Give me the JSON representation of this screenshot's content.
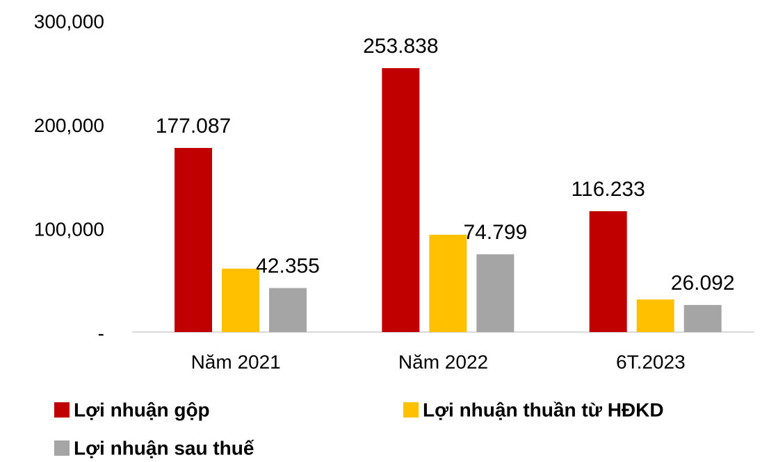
{
  "chart_data": {
    "type": "bar",
    "categories": [
      "Năm 2021",
      "Năm 2022",
      "6T.2023"
    ],
    "series": [
      {
        "name": "Lợi nhuận gộp",
        "color": "#c00000",
        "values": [
          177087,
          253838,
          116233
        ],
        "value_labels": [
          "177.087",
          "253.838",
          "116.233"
        ]
      },
      {
        "name": "Lợi nhuận thuần từ HĐKD",
        "color": "#ffc000",
        "values": [
          61000,
          93600,
          31400
        ]
      },
      {
        "name": "Lợi nhuận sau thuế",
        "color": "#a5a5a5",
        "values": [
          42355,
          74799,
          26092
        ],
        "value_labels": [
          "42.355",
          "74.799",
          "26.092"
        ]
      }
    ],
    "ylim": [
      0,
      300000
    ],
    "yticks": [
      {
        "value": 0,
        "label": "-"
      },
      {
        "value": 100000,
        "label": "100,000"
      },
      {
        "value": 200000,
        "label": "200,000"
      },
      {
        "value": 300000,
        "label": "300,000"
      }
    ]
  }
}
